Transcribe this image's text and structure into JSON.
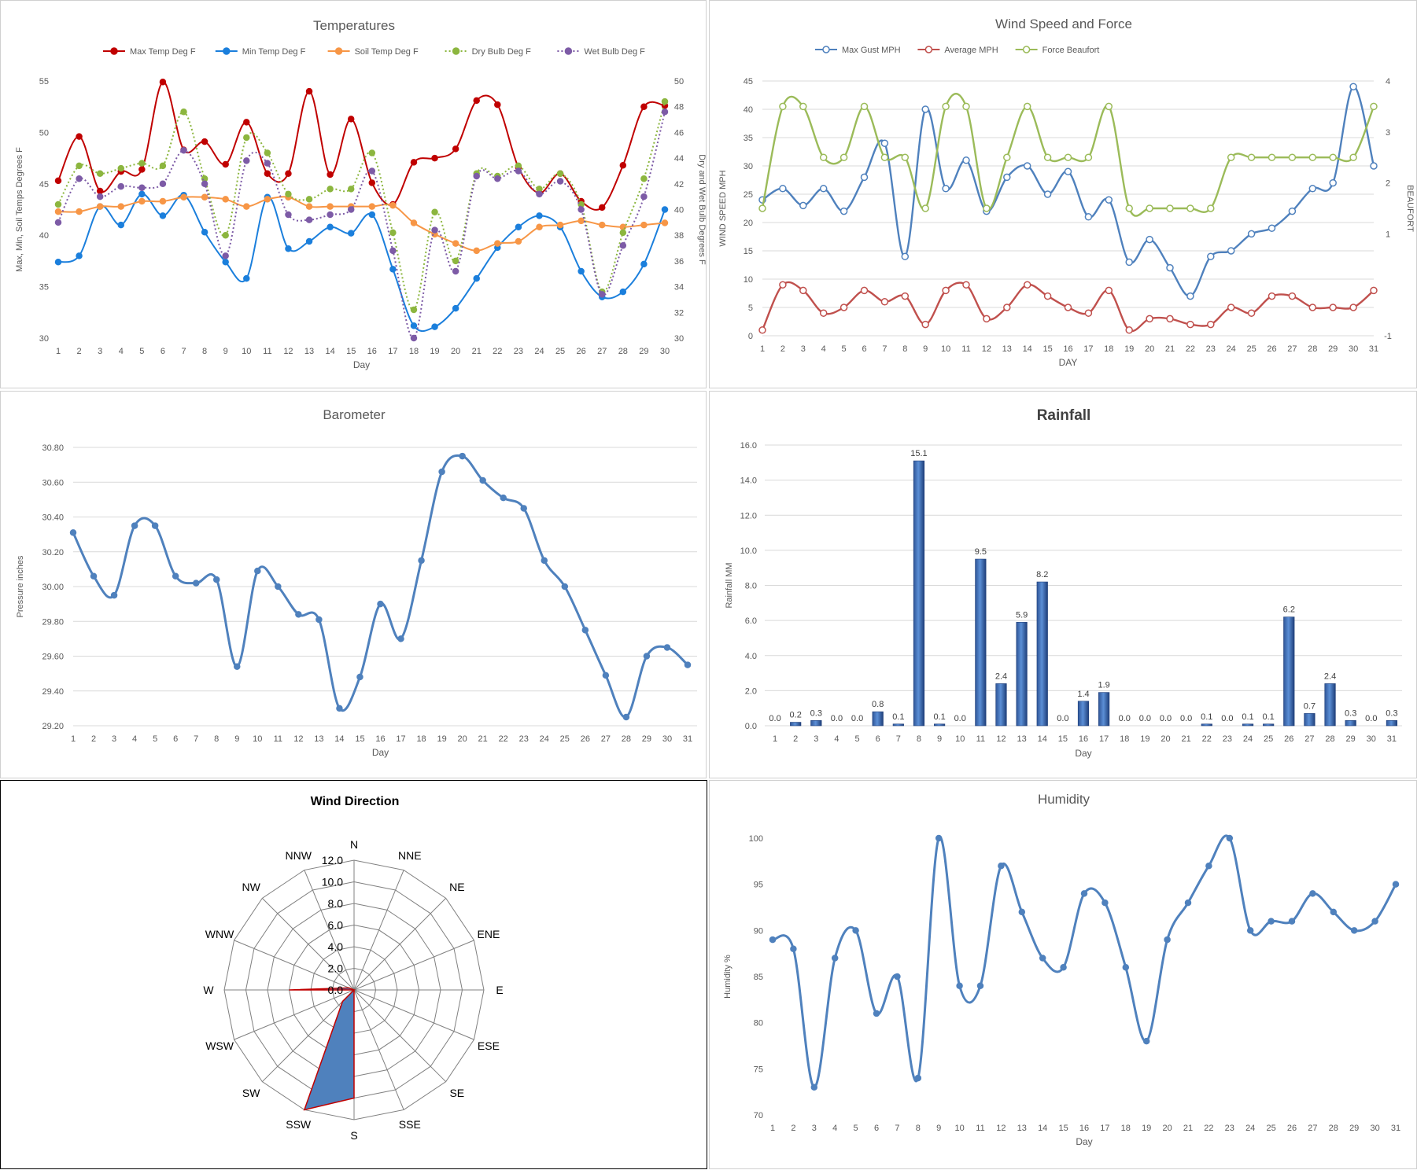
{
  "chart_data": [
    {
      "id": "temperatures",
      "type": "line",
      "title": "Temperatures",
      "xlabel": "Day",
      "ylabel": "Max, Min, Soil Temps Degrees F",
      "y2label": "Dry and Wet Bulb Degrees F",
      "ylim": [
        30,
        55
      ],
      "yticks": [
        30,
        35,
        40,
        45,
        50,
        55
      ],
      "y2lim": [
        30,
        50
      ],
      "y2ticks": [
        30,
        32,
        34,
        36,
        38,
        40,
        42,
        44,
        46,
        48,
        50
      ],
      "x": [
        1,
        2,
        3,
        4,
        5,
        6,
        7,
        8,
        9,
        10,
        11,
        12,
        13,
        14,
        15,
        16,
        17,
        18,
        19,
        20,
        21,
        22,
        23,
        24,
        25,
        26,
        27,
        28,
        29,
        30
      ],
      "legend_position": "top",
      "series": [
        {
          "name": "Max Temp Deg F",
          "color": "#c00000",
          "axis": "left",
          "style": "solid",
          "values": [
            45.3,
            49.6,
            44.3,
            46.2,
            46.4,
            54.9,
            48.3,
            49.1,
            46.9,
            51.0,
            46.0,
            46.0,
            54.0,
            45.9,
            51.3,
            45.1,
            43.0,
            47.1,
            47.5,
            48.4,
            53.1,
            52.7,
            46.6,
            44.1,
            46.0,
            43.3,
            42.7,
            46.8,
            52.5,
            52.6
          ]
        },
        {
          "name": "Min Temp Deg F",
          "color": "#1b7fdc",
          "axis": "left",
          "style": "solid",
          "values": [
            37.4,
            38.0,
            42.8,
            41.0,
            44.0,
            41.9,
            43.9,
            40.3,
            37.4,
            35.8,
            43.7,
            38.7,
            39.4,
            40.8,
            40.2,
            42.0,
            36.7,
            31.2,
            31.1,
            32.9,
            35.8,
            38.8,
            40.8,
            41.9,
            40.8,
            36.5,
            34.0,
            34.5,
            37.2,
            42.5
          ]
        },
        {
          "name": "Soil Temp Deg F",
          "color": "#f79646",
          "axis": "left",
          "style": "solid",
          "values": [
            42.3,
            42.3,
            42.8,
            42.8,
            43.3,
            43.3,
            43.7,
            43.7,
            43.5,
            42.8,
            43.5,
            43.7,
            42.8,
            42.8,
            42.8,
            42.8,
            42.9,
            41.2,
            40.1,
            39.2,
            38.5,
            39.2,
            39.4,
            40.8,
            41.0,
            41.4,
            41.0,
            40.8,
            41.0,
            41.2
          ]
        },
        {
          "name": "Dry Bulb Deg F",
          "color": "#8cb63f",
          "axis": "right",
          "style": "dotted",
          "values": [
            40.4,
            43.4,
            42.8,
            43.2,
            43.6,
            43.4,
            47.6,
            42.4,
            38.0,
            45.6,
            44.4,
            41.2,
            40.8,
            41.6,
            41.6,
            44.4,
            38.2,
            32.2,
            39.8,
            36.0,
            42.8,
            42.6,
            43.4,
            41.6,
            42.8,
            40.4,
            33.6,
            38.2,
            42.4,
            48.4
          ]
        },
        {
          "name": "Wet Bulb Deg F",
          "color": "#7d5ba6",
          "axis": "right",
          "style": "dotted",
          "values": [
            39.0,
            42.4,
            41.0,
            41.8,
            41.7,
            42.0,
            44.6,
            42.0,
            36.4,
            43.8,
            43.6,
            39.6,
            39.2,
            39.6,
            40.0,
            43.0,
            36.8,
            30.0,
            38.4,
            35.2,
            42.6,
            42.4,
            43.0,
            41.2,
            42.2,
            40.0,
            33.4,
            37.2,
            41.0,
            47.6
          ]
        }
      ]
    },
    {
      "id": "wind-speed",
      "type": "line",
      "title": "Wind Speed and Force",
      "xlabel": "DAY",
      "ylabel": "WIND SPEED MPH",
      "y2label": "BEAUFORT",
      "ylim": [
        0,
        45
      ],
      "yticks": [
        0,
        5,
        10,
        15,
        20,
        25,
        30,
        35,
        40,
        45
      ],
      "y2lim": [
        -1,
        4
      ],
      "y2ticks": [
        -1,
        1,
        2,
        3,
        4
      ],
      "x": [
        1,
        2,
        3,
        4,
        5,
        6,
        7,
        8,
        9,
        10,
        11,
        12,
        13,
        14,
        15,
        16,
        17,
        18,
        19,
        20,
        21,
        22,
        23,
        24,
        25,
        26,
        27,
        28,
        29,
        30,
        31
      ],
      "legend_position": "top",
      "series": [
        {
          "name": "Max Gust MPH",
          "color": "#4f81bd",
          "axis": "left",
          "values": [
            24,
            26,
            23,
            26,
            22,
            28,
            34,
            14,
            40,
            26,
            31,
            22,
            28,
            30,
            25,
            29,
            21,
            24,
            13,
            17,
            12,
            7,
            14,
            15,
            18,
            19,
            22,
            26,
            27,
            44,
            30
          ]
        },
        {
          "name": "Average MPH",
          "color": "#c0504d",
          "axis": "left",
          "values": [
            1,
            9,
            8,
            4,
            5,
            8,
            6,
            7,
            2,
            8,
            9,
            3,
            5,
            9,
            7,
            5,
            4,
            8,
            1,
            3,
            3,
            2,
            2,
            5,
            4,
            7,
            7,
            5,
            5,
            5,
            8
          ]
        },
        {
          "name": "Force Beaufort",
          "color": "#9bbb59",
          "axis": "right",
          "values": [
            1.5,
            3.5,
            3.5,
            2.5,
            2.5,
            3.5,
            2.5,
            2.5,
            1.5,
            3.5,
            3.5,
            1.5,
            2.5,
            3.5,
            2.5,
            2.5,
            2.5,
            3.5,
            1.5,
            1.5,
            1.5,
            1.5,
            1.5,
            2.5,
            2.5,
            2.5,
            2.5,
            2.5,
            2.5,
            2.5,
            3.5
          ]
        }
      ]
    },
    {
      "id": "barometer",
      "type": "line",
      "title": "Barometer",
      "xlabel": "Day",
      "ylabel": "Pressure inches",
      "ylim": [
        29.2,
        30.8
      ],
      "yticks": [
        "29.20",
        "29.40",
        "29.60",
        "29.80",
        "30.00",
        "30.20",
        "30.40",
        "30.60",
        "30.80"
      ],
      "x": [
        1,
        2,
        3,
        4,
        5,
        6,
        7,
        8,
        9,
        10,
        11,
        12,
        13,
        14,
        15,
        16,
        17,
        18,
        19,
        20,
        21,
        22,
        23,
        24,
        25,
        26,
        27,
        28,
        29,
        30,
        31
      ],
      "series": [
        {
          "name": "",
          "color": "#4f81bd",
          "values": [
            30.31,
            30.06,
            29.95,
            30.35,
            30.35,
            30.06,
            30.02,
            30.04,
            29.54,
            30.09,
            30.0,
            29.84,
            29.81,
            29.3,
            29.48,
            29.9,
            29.7,
            30.15,
            30.66,
            30.75,
            30.61,
            30.51,
            30.45,
            30.15,
            30.0,
            29.75,
            29.49,
            29.25,
            29.6,
            29.65,
            29.55
          ]
        }
      ]
    },
    {
      "id": "rainfall",
      "type": "bar",
      "title": "Rainfall",
      "xlabel": "Day",
      "ylabel": "Rainfall MM",
      "ylim": [
        0,
        16
      ],
      "yticks": [
        "0.0",
        "2.0",
        "4.0",
        "6.0",
        "8.0",
        "10.0",
        "12.0",
        "14.0",
        "16.0"
      ],
      "categories": [
        "1",
        "2",
        "3",
        "4",
        "5",
        "6",
        "7",
        "8",
        "9",
        "10",
        "11",
        "12",
        "13",
        "14",
        "15",
        "16",
        "17",
        "18",
        "19",
        "20",
        "21",
        "22",
        "23",
        "24",
        "25",
        "26",
        "27",
        "28",
        "29",
        "30",
        "31"
      ],
      "values": [
        0.0,
        0.2,
        0.3,
        0.0,
        0.0,
        0.8,
        0.1,
        15.1,
        0.1,
        0.0,
        9.5,
        2.4,
        5.9,
        8.2,
        0.0,
        1.4,
        1.9,
        0.0,
        0.0,
        0.0,
        0.0,
        0.1,
        0.0,
        0.1,
        0.1,
        6.2,
        0.7,
        2.4,
        0.3,
        0.0,
        0.3
      ],
      "data_labels": [
        "0.0",
        "0.2",
        "0.3",
        "0.0",
        "0.0",
        "0.8",
        "0.1",
        "15.1",
        "0.1",
        "0.0",
        "9.5",
        "2.4",
        "5.9",
        "8.2",
        "0.0",
        "1.4",
        "1.9",
        "0.0",
        "0.0",
        "0.0",
        "0.0",
        "0.1",
        "0.0",
        "0.1",
        "0.1",
        "6.2",
        "0.7",
        "2.4",
        "0.3",
        "0.0",
        "0.3"
      ],
      "color": "#4472c4"
    },
    {
      "id": "wind-direction",
      "type": "radar",
      "title": "Wind Direction",
      "categories": [
        "N",
        "NNE",
        "NE",
        "ENE",
        "E",
        "ESE",
        "SE",
        "SSE",
        "S",
        "SSW",
        "SW",
        "WSW",
        "W",
        "WNW",
        "NW",
        "NNW"
      ],
      "values": [
        0,
        0,
        0,
        0,
        0,
        0,
        0,
        0,
        10,
        12.0,
        1.5,
        0,
        6,
        0.5,
        0,
        0
      ],
      "rlim": [
        0,
        12
      ],
      "rticks": [
        "0.0",
        "2.0",
        "4.0",
        "6.0",
        "8.0",
        "10.0",
        "12.0"
      ],
      "fill_color": "#4f81bd",
      "line_color": "#c00000"
    },
    {
      "id": "humidity",
      "type": "line",
      "title": "Humidity",
      "xlabel": "Day",
      "ylabel": "Humidity %",
      "ylim": [
        70,
        100
      ],
      "yticks": [
        70,
        75,
        80,
        85,
        90,
        95,
        100
      ],
      "x": [
        1,
        2,
        3,
        4,
        5,
        6,
        7,
        8,
        9,
        10,
        11,
        12,
        13,
        14,
        15,
        16,
        17,
        18,
        19,
        20,
        21,
        22,
        23,
        24,
        25,
        26,
        27,
        28,
        29,
        30,
        31
      ],
      "series": [
        {
          "name": "",
          "color": "#4f81bd",
          "values": [
            89,
            88,
            73,
            87,
            90,
            81,
            85,
            74,
            100,
            84,
            84,
            97,
            92,
            87,
            86,
            94,
            93,
            86,
            78,
            89,
            93,
            97,
            100,
            90,
            91,
            91,
            94,
            92,
            90,
            91,
            95
          ]
        }
      ]
    }
  ]
}
